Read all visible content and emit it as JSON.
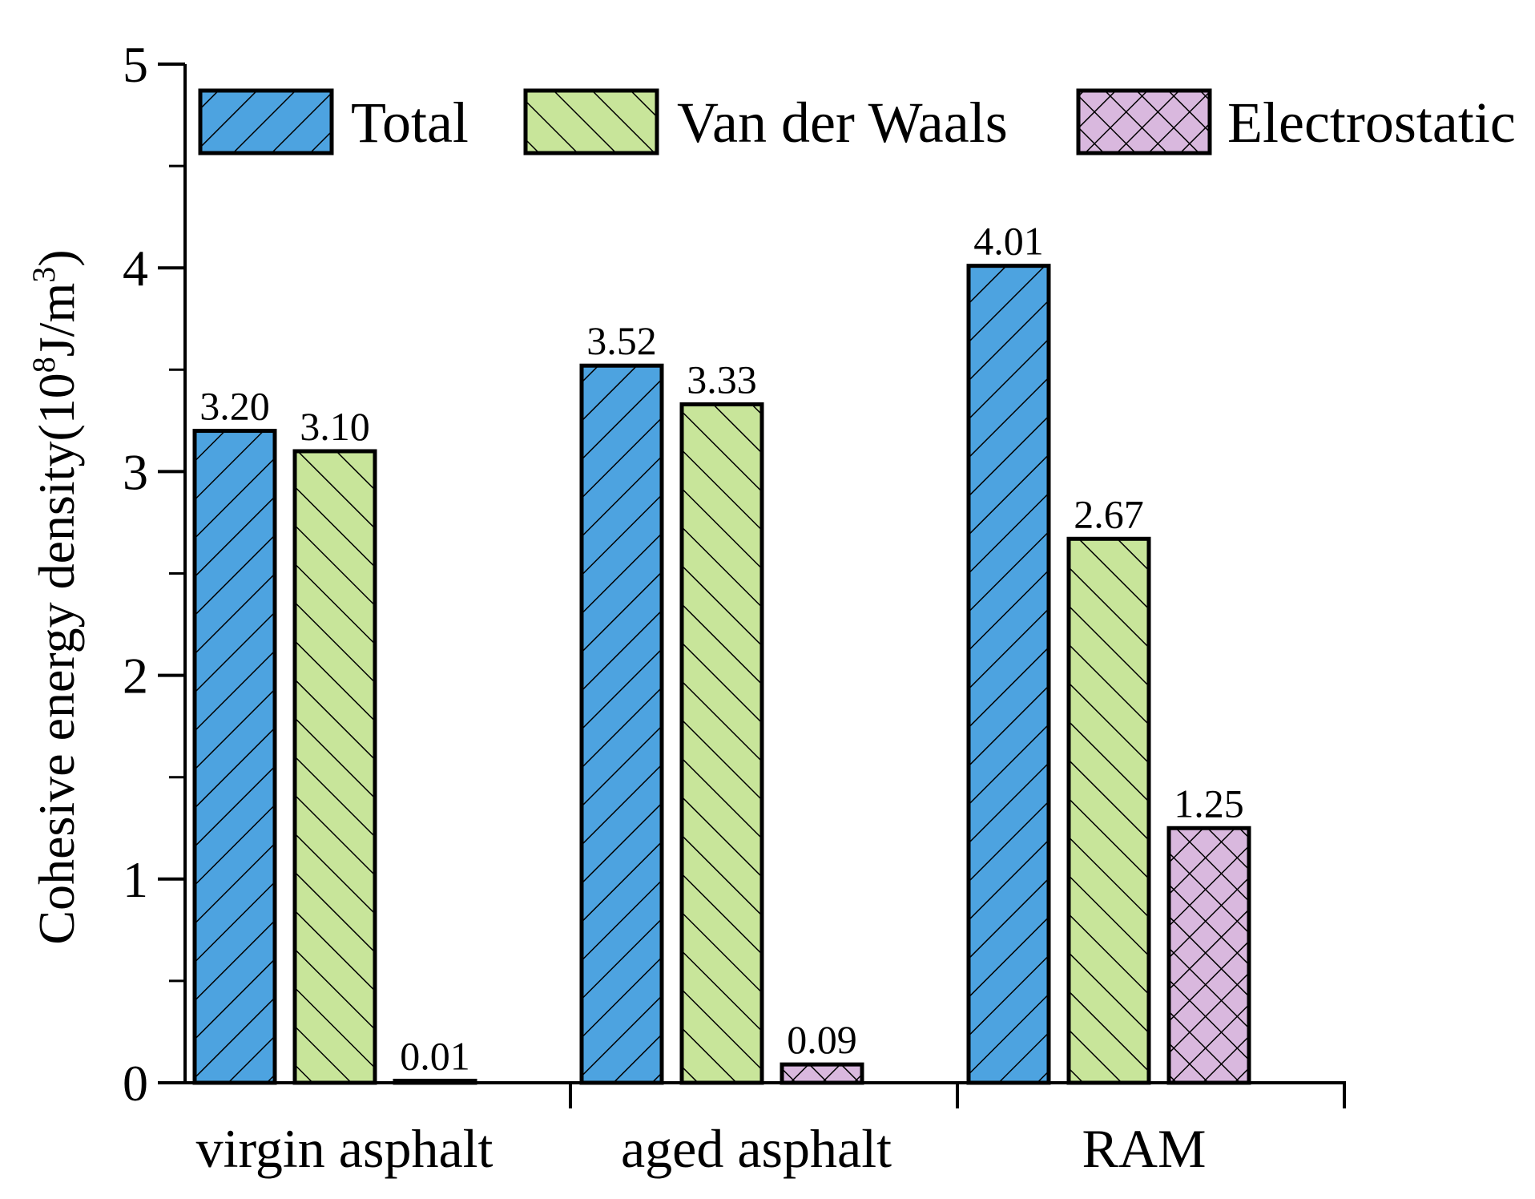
{
  "chart_data": {
    "type": "bar",
    "categories": [
      "virgin asphalt",
      "aged asphalt",
      "RAM"
    ],
    "series": [
      {
        "name": "Total",
        "values": [
          3.2,
          3.52,
          4.01
        ],
        "labels": [
          "3.20",
          "3.52",
          "4.01"
        ],
        "color": "#4da3e0",
        "pattern": "forward-diagonal"
      },
      {
        "name": "Van der Waals",
        "values": [
          3.1,
          3.33,
          2.67
        ],
        "labels": [
          "3.10",
          "3.33",
          "2.67"
        ],
        "color": "#c8e59a",
        "pattern": "back-diagonal"
      },
      {
        "name": "Electrostatic",
        "values": [
          0.01,
          0.09,
          1.25
        ],
        "labels": [
          "0.01",
          "0.09",
          "1.25"
        ],
        "color": "#d9b8de",
        "pattern": "crosshatch"
      }
    ],
    "ylabel_main": "Cohesive energy density(10",
    "ylabel_sup1": "8",
    "ylabel_mid": "J/m",
    "ylabel_sup2": "3",
    "ylabel_end": ")",
    "ylim": [
      0,
      5
    ],
    "yticks": [
      "0",
      "1",
      "2",
      "3",
      "4",
      "5"
    ],
    "legend_position": "top"
  }
}
